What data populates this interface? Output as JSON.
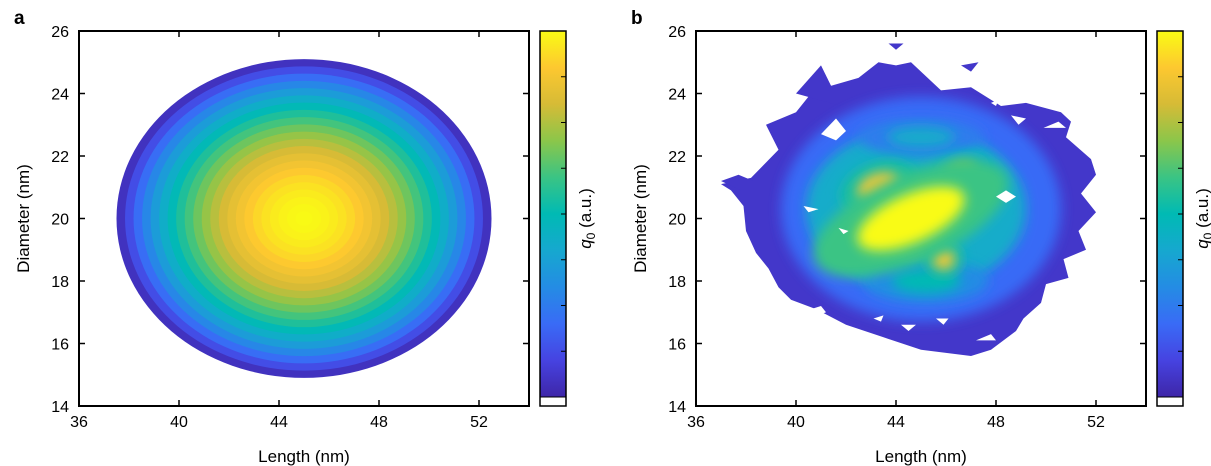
{
  "chart_data": [
    {
      "type": "heatmap",
      "panel_label": "a",
      "xlabel": "Length (nm)",
      "ylabel": "Diameter (nm)",
      "colorbar_label": "q",
      "colorbar_label_sub": "0",
      "colorbar_label_unit": " (a.u.)",
      "xlim": [
        36,
        54
      ],
      "ylim": [
        14,
        26
      ],
      "xticks": [
        36,
        40,
        44,
        48,
        52
      ],
      "yticks": [
        14,
        16,
        18,
        20,
        22,
        24,
        26
      ],
      "colormap": "parula",
      "shape": "ellipse",
      "center": {
        "x": 45,
        "y": 20
      },
      "radius": {
        "x": 7.5,
        "y": 5.1
      },
      "peak_value": 1.0,
      "edge_value": 0.04,
      "levels": 22
    },
    {
      "type": "heatmap",
      "panel_label": "b",
      "xlabel": "Length (nm)",
      "ylabel": "Diameter (nm)",
      "colorbar_label": "q",
      "colorbar_label_sub": "0",
      "colorbar_label_unit": " (a.u.)",
      "xlim": [
        36,
        54
      ],
      "ylim": [
        14,
        26
      ],
      "xticks": [
        36,
        40,
        44,
        48,
        52
      ],
      "yticks": [
        14,
        16,
        18,
        20,
        22,
        24,
        26
      ],
      "colormap": "parula",
      "outline": [
        [
          38.2,
          21.3
        ],
        [
          39.3,
          22.2
        ],
        [
          38.8,
          23.0
        ],
        [
          40.0,
          23.4
        ],
        [
          40.6,
          24.0
        ],
        [
          41.2,
          24.2
        ],
        [
          42.5,
          24.5
        ],
        [
          43.3,
          25.0
        ],
        [
          44.0,
          24.9
        ],
        [
          44.6,
          25.0
        ],
        [
          45.0,
          24.7
        ],
        [
          45.8,
          24.1
        ],
        [
          47.0,
          24.2
        ],
        [
          48.2,
          23.6
        ],
        [
          49.2,
          23.7
        ],
        [
          50.6,
          23.4
        ],
        [
          51.0,
          23.1
        ],
        [
          50.8,
          22.6
        ],
        [
          51.8,
          21.9
        ],
        [
          52.0,
          21.4
        ],
        [
          51.4,
          20.8
        ],
        [
          52.0,
          20.2
        ],
        [
          51.3,
          19.6
        ],
        [
          51.6,
          19.0
        ],
        [
          50.7,
          18.7
        ],
        [
          50.9,
          18.1
        ],
        [
          50.0,
          17.9
        ],
        [
          49.8,
          17.3
        ],
        [
          49.1,
          16.8
        ],
        [
          48.8,
          16.4
        ],
        [
          47.8,
          15.8
        ],
        [
          47.0,
          15.6
        ],
        [
          45.0,
          15.8
        ],
        [
          43.5,
          16.2
        ],
        [
          42.0,
          16.6
        ],
        [
          40.8,
          17.1
        ],
        [
          39.8,
          17.4
        ],
        [
          39.3,
          17.8
        ],
        [
          38.9,
          18.4
        ],
        [
          38.4,
          18.9
        ],
        [
          38.0,
          19.6
        ],
        [
          37.9,
          20.4
        ],
        [
          37.4,
          20.9
        ],
        [
          37.0,
          21.1
        ]
      ],
      "hotspots": [
        {
          "x": 44.6,
          "y": 20.0,
          "value": 1.0,
          "rx": 4.2,
          "ry": 1.4,
          "angle": -24
        },
        {
          "x": 43.3,
          "y": 21.0,
          "value": 0.9,
          "rx": 1.6,
          "ry": 0.8,
          "angle": -20
        },
        {
          "x": 44.8,
          "y": 20.7,
          "value": 0.88,
          "rx": 1.2,
          "ry": 0.7,
          "angle": 0
        },
        {
          "x": 45.9,
          "y": 18.7,
          "value": 0.9,
          "rx": 0.8,
          "ry": 0.6,
          "angle": 0
        },
        {
          "x": 46.6,
          "y": 21.5,
          "value": 0.72,
          "rx": 1.2,
          "ry": 0.6,
          "angle": -15
        },
        {
          "x": 44.6,
          "y": 19.2,
          "value": 0.78,
          "rx": 1.5,
          "ry": 0.6,
          "angle": -10
        },
        {
          "x": 45.0,
          "y": 22.6,
          "value": 0.42,
          "rx": 2.5,
          "ry": 0.6,
          "angle": 0
        },
        {
          "x": 45.2,
          "y": 18.0,
          "value": 0.5,
          "rx": 2.5,
          "ry": 0.7,
          "angle": 0
        }
      ],
      "islands": [
        [
          [
            37.0,
            21.2
          ],
          [
            37.7,
            21.4
          ],
          [
            38.3,
            21.2
          ],
          [
            37.8,
            20.9
          ]
        ],
        [
          [
            40.0,
            24.0
          ],
          [
            41.0,
            24.9
          ],
          [
            41.8,
            23.6
          ]
        ],
        [
          [
            43.7,
            25.6
          ],
          [
            44.3,
            25.6
          ],
          [
            44.0,
            25.4
          ]
        ],
        [
          [
            46.6,
            24.9
          ],
          [
            47.3,
            25.0
          ],
          [
            47.0,
            24.7
          ]
        ]
      ],
      "holes": [
        [
          [
            41.0,
            22.7
          ],
          [
            41.6,
            23.2
          ],
          [
            42.0,
            22.8
          ],
          [
            41.6,
            22.5
          ]
        ],
        [
          [
            40.3,
            20.4
          ],
          [
            40.9,
            20.3
          ],
          [
            40.5,
            20.2
          ]
        ],
        [
          [
            41.7,
            19.7
          ],
          [
            42.1,
            19.6
          ],
          [
            41.9,
            19.5
          ]
        ],
        [
          [
            48.0,
            20.7
          ],
          [
            48.4,
            20.9
          ],
          [
            48.8,
            20.7
          ],
          [
            48.4,
            20.5
          ]
        ],
        [
          [
            40.6,
            17.1
          ],
          [
            41.0,
            17.2
          ],
          [
            41.2,
            17.0
          ],
          [
            40.9,
            16.9
          ]
        ],
        [
          [
            43.1,
            16.8
          ],
          [
            43.5,
            16.9
          ],
          [
            43.4,
            16.7
          ]
        ],
        [
          [
            44.2,
            16.6
          ],
          [
            44.8,
            16.6
          ],
          [
            44.5,
            16.4
          ]
        ],
        [
          [
            45.6,
            16.8
          ],
          [
            46.1,
            16.8
          ],
          [
            45.9,
            16.6
          ]
        ],
        [
          [
            47.2,
            16.1
          ],
          [
            47.8,
            16.3
          ],
          [
            48.0,
            16.1
          ]
        ],
        [
          [
            48.6,
            23.3
          ],
          [
            49.2,
            23.2
          ],
          [
            48.9,
            23.0
          ]
        ],
        [
          [
            49.9,
            22.9
          ],
          [
            50.5,
            23.1
          ],
          [
            50.8,
            22.9
          ]
        ],
        [
          [
            47.8,
            23.7
          ],
          [
            48.1,
            23.8
          ],
          [
            48.0,
            23.6
          ]
        ]
      ],
      "levels": 18
    }
  ]
}
